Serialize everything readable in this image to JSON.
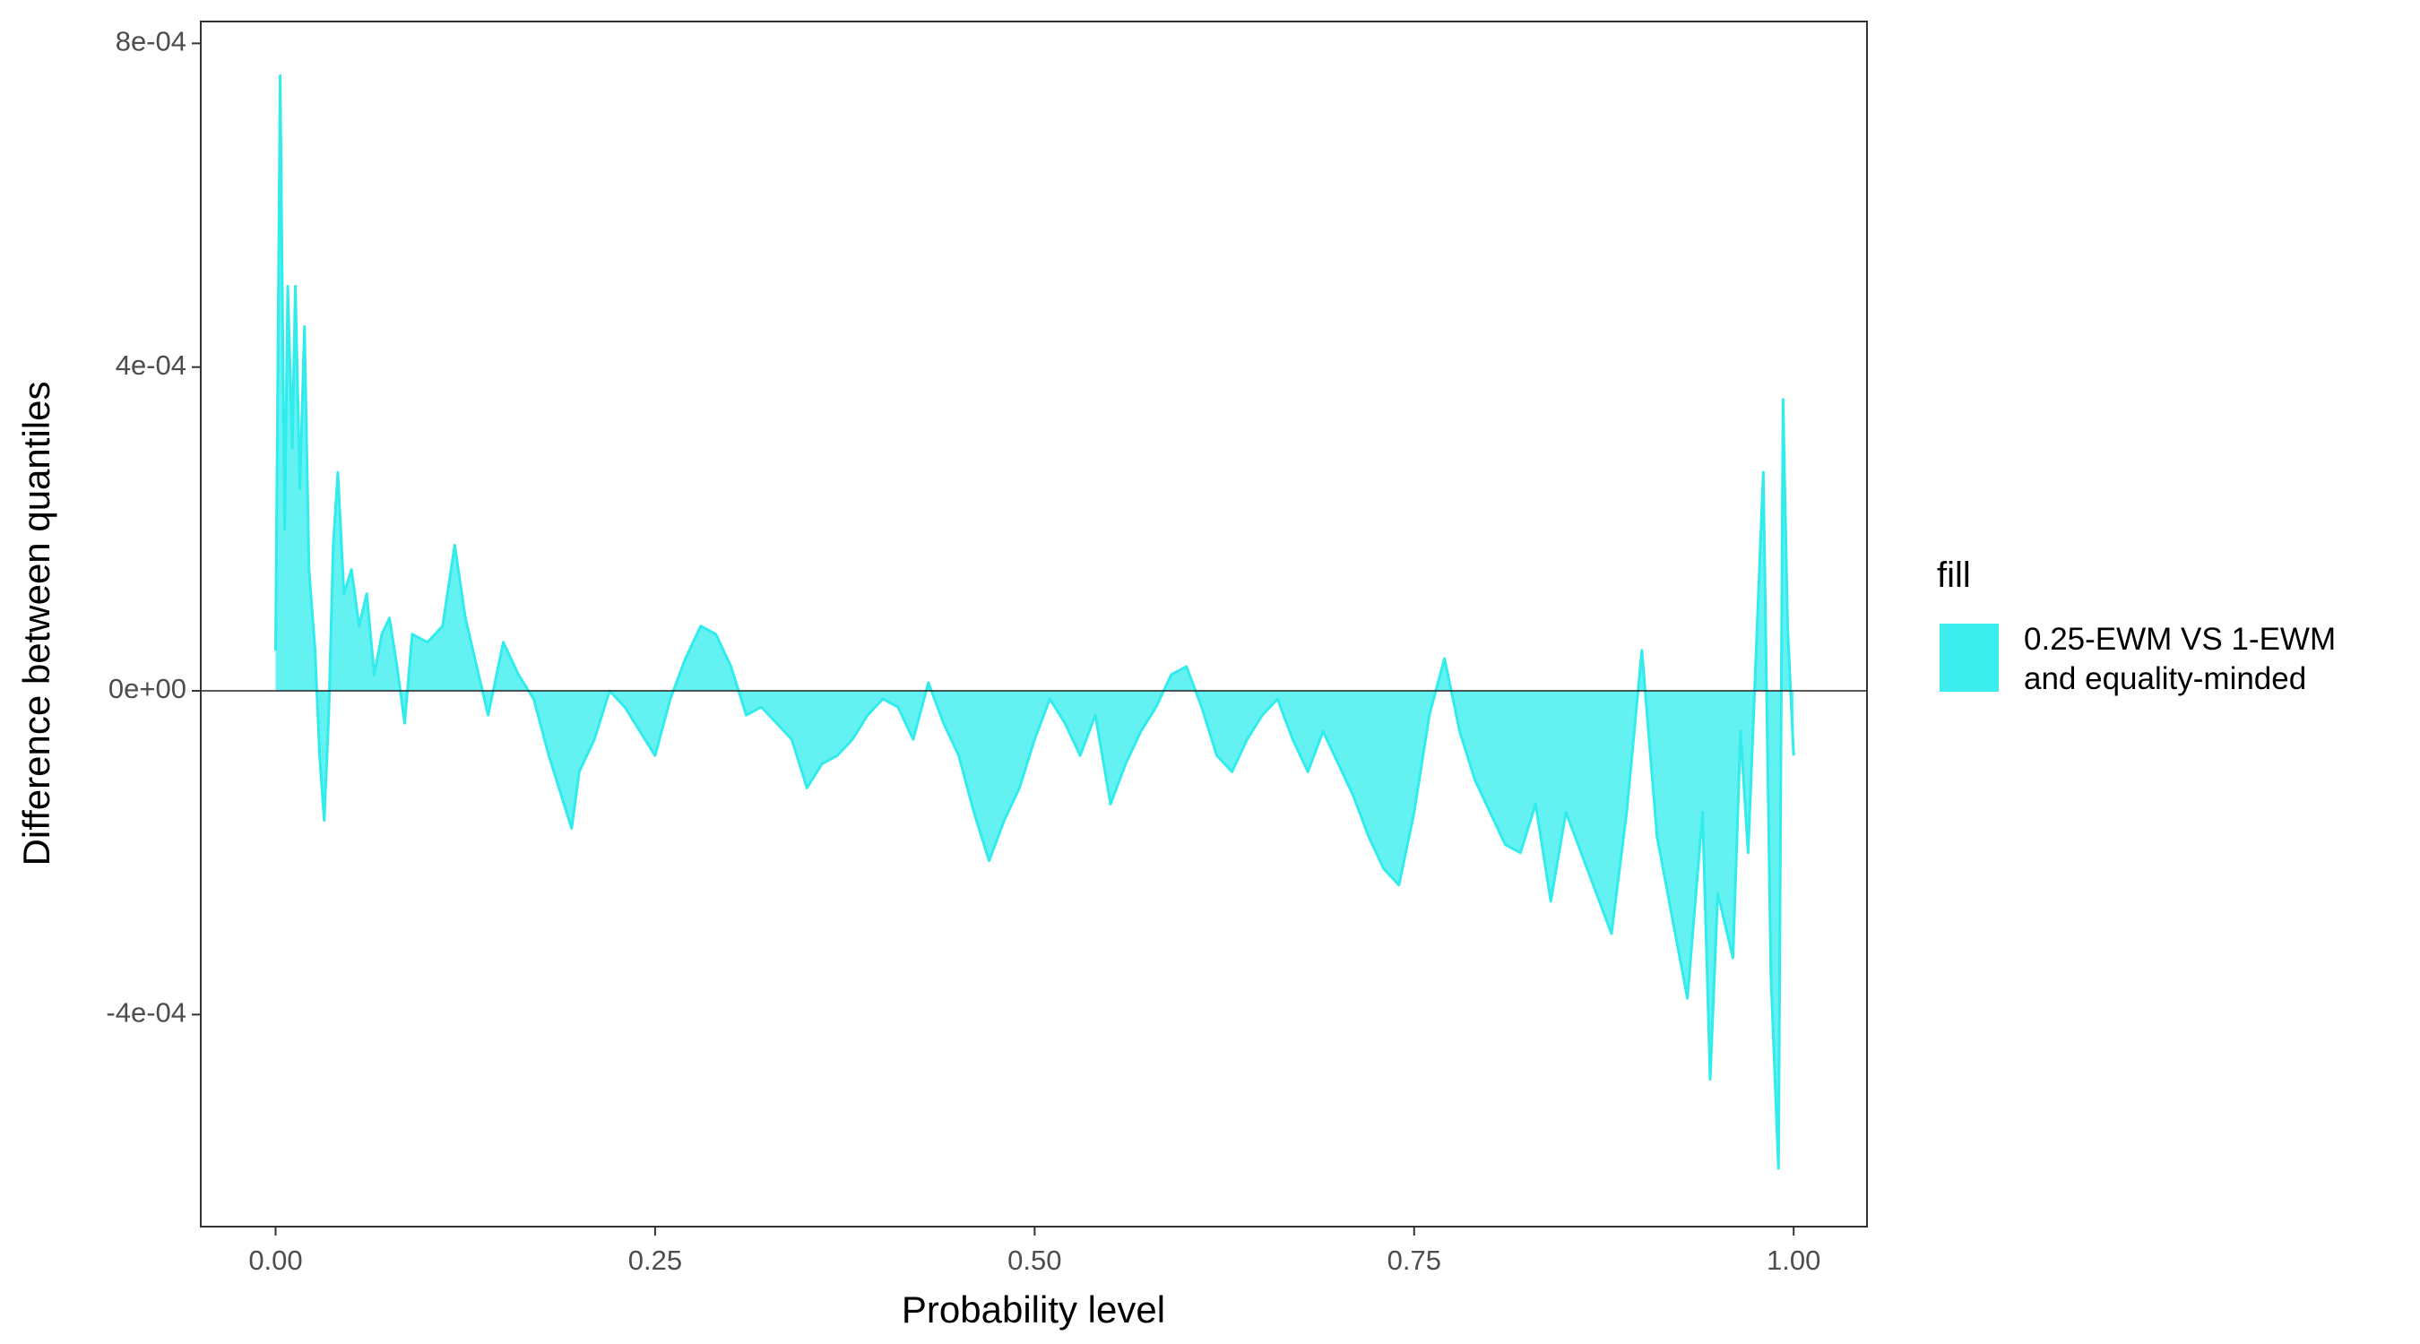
{
  "chart_data": {
    "type": "area",
    "x_label": "Probability level",
    "y_label": "Difference between quantiles",
    "legend_title": "fill",
    "xlim": [
      -0.0493,
      1.0483
    ],
    "ylim": [
      -0.000662,
      0.000827
    ],
    "xticks": [
      {
        "value": 0,
        "label": "0.00"
      },
      {
        "value": 0.25,
        "label": "0.25"
      },
      {
        "value": 0.5,
        "label": "0.50"
      },
      {
        "value": 0.75,
        "label": "0.75"
      },
      {
        "value": 1,
        "label": "1.00"
      }
    ],
    "yticks": [
      {
        "value": -0.0004,
        "label": "-4e-04"
      },
      {
        "value": 0,
        "label": "0e+00"
      },
      {
        "value": 0.0004,
        "label": "4e-04"
      },
      {
        "value": 0.0008,
        "label": "8e-04"
      }
    ],
    "grid": false,
    "legend_position": "right",
    "x": [
      0,
      0.003,
      0.006,
      0.008,
      0.011,
      0.013,
      0.016,
      0.019,
      0.022,
      0.026,
      0.029,
      0.032,
      0.035,
      0.038,
      0.041,
      0.045,
      0.05,
      0.055,
      0.06,
      0.065,
      0.07,
      0.075,
      0.08,
      0.085,
      0.09,
      0.1,
      0.11,
      0.118,
      0.125,
      0.13,
      0.14,
      0.15,
      0.16,
      0.17,
      0.18,
      0.19,
      0.195,
      0.2,
      0.21,
      0.22,
      0.23,
      0.24,
      0.25,
      0.26,
      0.27,
      0.28,
      0.29,
      0.3,
      0.31,
      0.32,
      0.33,
      0.34,
      0.35,
      0.36,
      0.37,
      0.38,
      0.39,
      0.4,
      0.41,
      0.42,
      0.43,
      0.44,
      0.45,
      0.46,
      0.47,
      0.48,
      0.49,
      0.5,
      0.51,
      0.52,
      0.53,
      0.54,
      0.55,
      0.56,
      0.57,
      0.58,
      0.59,
      0.6,
      0.61,
      0.62,
      0.63,
      0.64,
      0.65,
      0.66,
      0.67,
      0.68,
      0.69,
      0.7,
      0.71,
      0.72,
      0.73,
      0.74,
      0.75,
      0.76,
      0.77,
      0.78,
      0.79,
      0.8,
      0.81,
      0.82,
      0.83,
      0.84,
      0.85,
      0.86,
      0.87,
      0.88,
      0.89,
      0.9,
      0.91,
      0.92,
      0.93,
      0.94,
      0.945,
      0.95,
      0.96,
      0.965,
      0.97,
      0.98,
      0.985,
      0.99,
      0.993,
      0.996,
      1
    ],
    "series": [
      {
        "name": "0.25-EWM VS 1-EWM\nand equality-minded",
        "color": "#30ecec",
        "values": [
          5e-05,
          0.00076,
          0.0002,
          0.0005,
          0.0003,
          0.0005,
          0.00025,
          0.00045,
          0.00015,
          5e-05,
          -8e-05,
          -0.00016,
          -3e-05,
          0.00018,
          0.00027,
          0.00012,
          0.00015,
          8e-05,
          0.00012,
          2e-05,
          7e-05,
          9e-05,
          3e-05,
          -4e-05,
          7e-05,
          6e-05,
          8e-05,
          0.00018,
          9e-05,
          5e-05,
          -3e-05,
          6e-05,
          2e-05,
          -1e-05,
          -8e-05,
          -0.00014,
          -0.00017,
          -0.0001,
          -6e-05,
          0,
          -2e-05,
          -5e-05,
          -8e-05,
          -1e-05,
          4e-05,
          8e-05,
          7e-05,
          3e-05,
          -3e-05,
          -2e-05,
          -4e-05,
          -6e-05,
          -0.00012,
          -9e-05,
          -8e-05,
          -6e-05,
          -3e-05,
          -1e-05,
          -2e-05,
          -6e-05,
          1e-05,
          -4e-05,
          -8e-05,
          -0.00015,
          -0.00021,
          -0.00016,
          -0.00012,
          -6e-05,
          -1e-05,
          -4e-05,
          -8e-05,
          -3e-05,
          -0.00014,
          -9e-05,
          -5e-05,
          -2e-05,
          2e-05,
          3e-05,
          -2e-05,
          -8e-05,
          -0.0001,
          -6e-05,
          -3e-05,
          -1e-05,
          -6e-05,
          -0.0001,
          -5e-05,
          -9e-05,
          -0.00013,
          -0.00018,
          -0.00022,
          -0.00024,
          -0.00015,
          -3e-05,
          4e-05,
          -5e-05,
          -0.00011,
          -0.00015,
          -0.00019,
          -0.0002,
          -0.00014,
          -0.00026,
          -0.00015,
          -0.0002,
          -0.00025,
          -0.0003,
          -0.00015,
          5e-05,
          -0.00018,
          -0.00028,
          -0.00038,
          -0.00015,
          -0.00048,
          -0.00025,
          -0.00033,
          -5e-05,
          -0.0002,
          0.00027,
          -0.00035,
          -0.00059,
          0.00036,
          8e-05,
          -8e-05
        ]
      }
    ]
  }
}
